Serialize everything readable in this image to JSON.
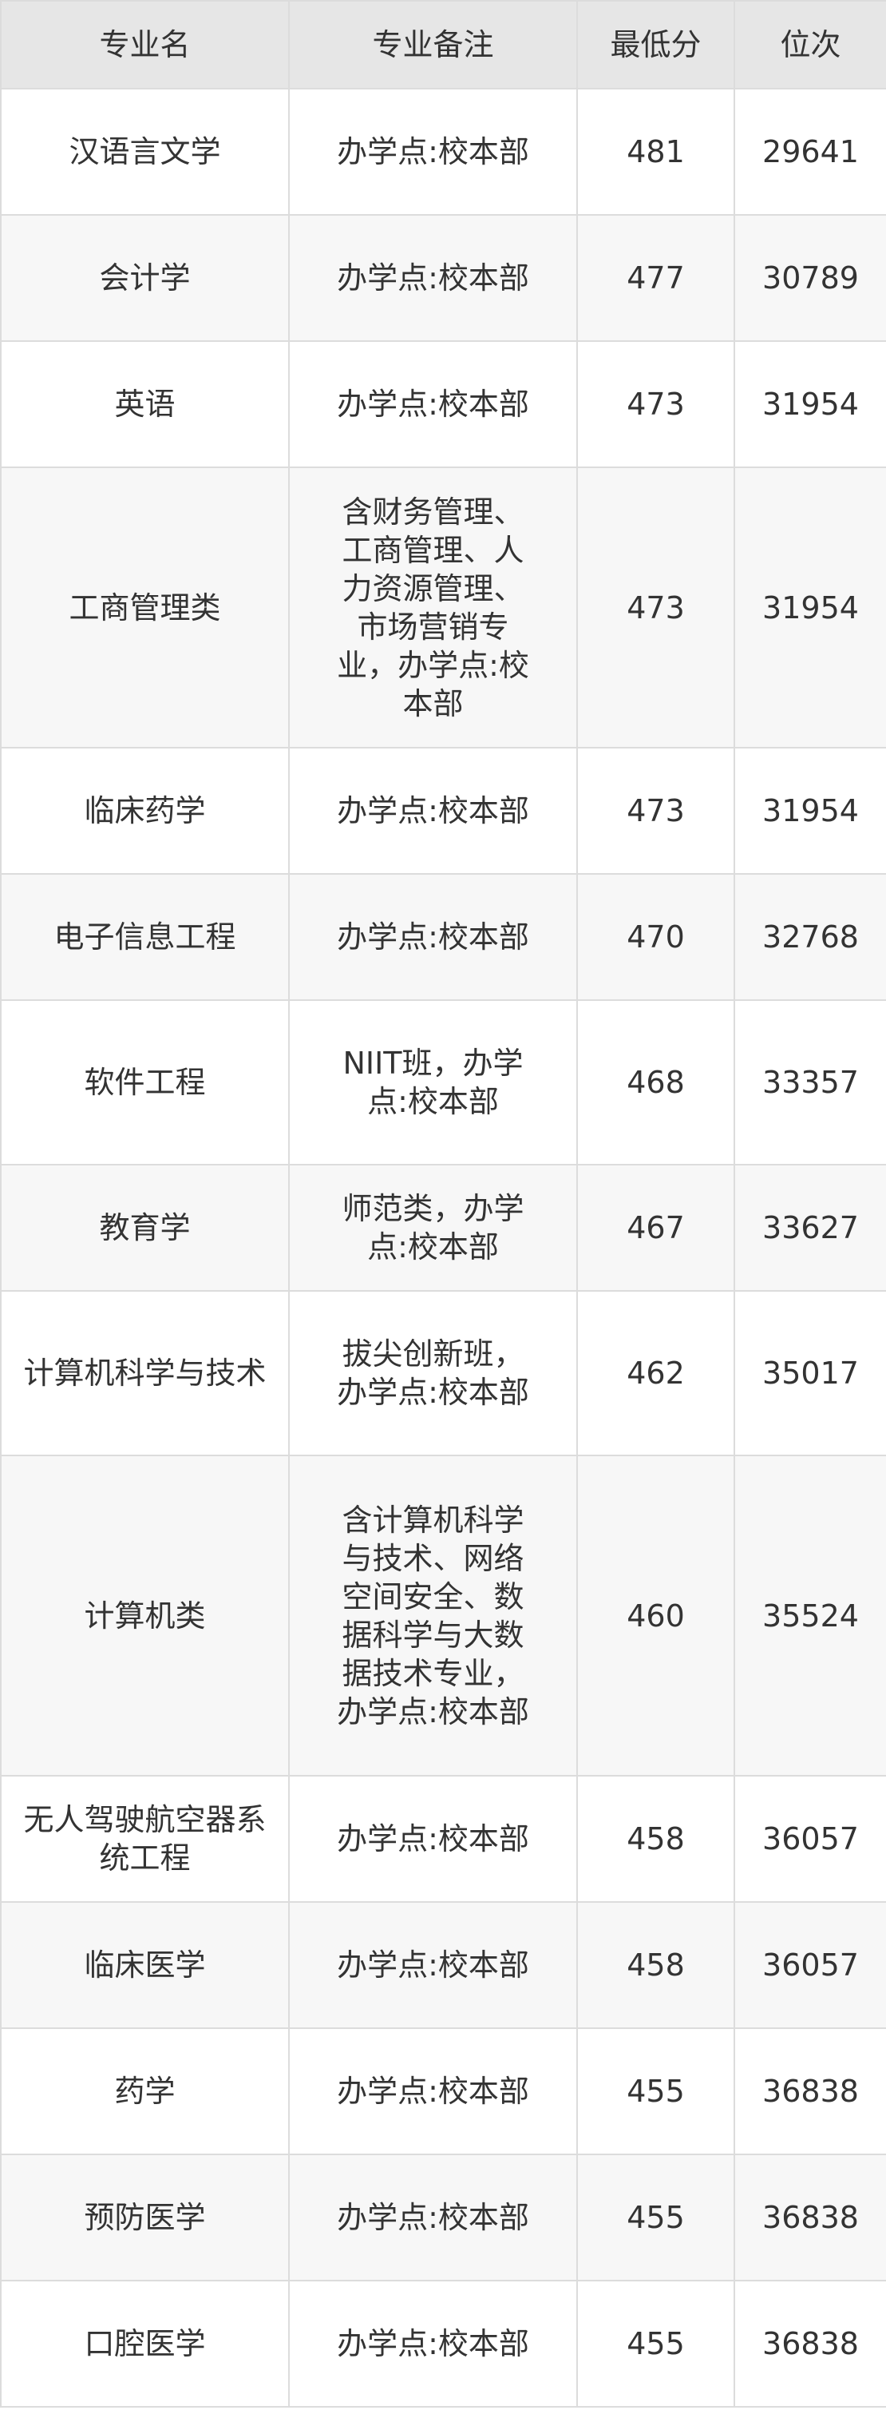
{
  "table": {
    "headers": [
      "专业名",
      "专业备注",
      "最低分",
      "位次"
    ],
    "rows": [
      {
        "name": "汉语言文学",
        "remark": "办学点:校本部",
        "score": "481",
        "rank": "29641"
      },
      {
        "name": "会计学",
        "remark": "办学点:校本部",
        "score": "477",
        "rank": "30789"
      },
      {
        "name": "英语",
        "remark": "办学点:校本部",
        "score": "473",
        "rank": "31954"
      },
      {
        "name": "工商管理类",
        "remark": "含财务管理、工商管理、人力资源管理、市场营销专业，办学点:校本部",
        "score": "473",
        "rank": "31954"
      },
      {
        "name": "临床药学",
        "remark": "办学点:校本部",
        "score": "473",
        "rank": "31954"
      },
      {
        "name": "电子信息工程",
        "remark": "办学点:校本部",
        "score": "470",
        "rank": "32768"
      },
      {
        "name": "软件工程",
        "remark": "NIIT班，办学点:校本部",
        "score": "468",
        "rank": "33357"
      },
      {
        "name": "教育学",
        "remark": "师范类，办学点:校本部",
        "score": "467",
        "rank": "33627"
      },
      {
        "name": "计算机科学与技术",
        "remark": "拔尖创新班，办学点:校本部",
        "score": "462",
        "rank": "35017"
      },
      {
        "name": "计算机类",
        "remark": "含计算机科学与技术、网络空间安全、数据科学与大数据技术专业，办学点:校本部",
        "score": "460",
        "rank": "35524"
      },
      {
        "name": "无人驾驶航空器系统工程",
        "remark": "办学点:校本部",
        "score": "458",
        "rank": "36057"
      },
      {
        "name": "临床医学",
        "remark": "办学点:校本部",
        "score": "458",
        "rank": "36057"
      },
      {
        "name": "药学",
        "remark": "办学点:校本部",
        "score": "455",
        "rank": "36838"
      },
      {
        "name": "预防医学",
        "remark": "办学点:校本部",
        "score": "455",
        "rank": "36838"
      },
      {
        "name": "口腔医学",
        "remark": "办学点:校本部",
        "score": "455",
        "rank": "36838"
      }
    ]
  },
  "colors": {
    "header_bg": "#e6e6e6",
    "row_alt_bg": "#f7f7f7",
    "border": "#dcdcdc",
    "text": "#333333"
  }
}
